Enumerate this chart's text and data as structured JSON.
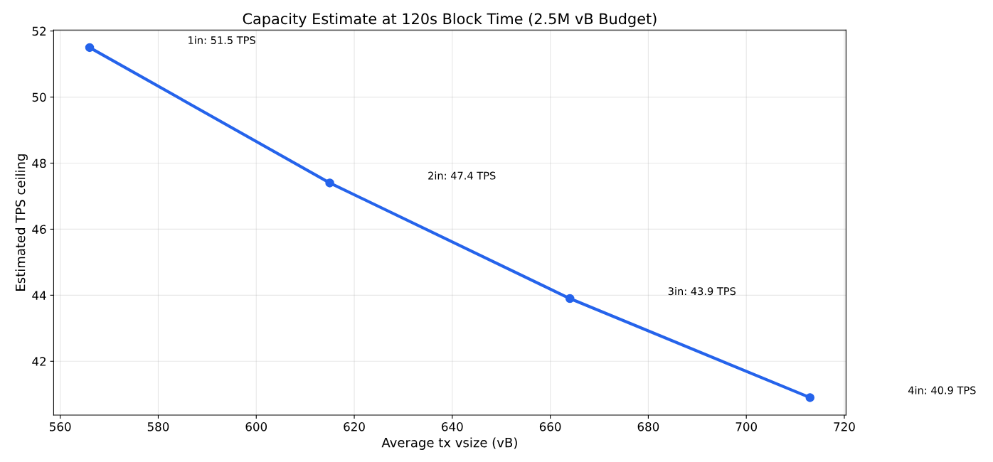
{
  "chart_data": {
    "type": "line",
    "title": "Capacity Estimate at 120s Block Time (2.5M vB Budget)",
    "xlabel": "Average tx vsize (vB)",
    "ylabel": "Estimated TPS ceiling",
    "x": [
      566,
      615,
      664,
      713
    ],
    "series": [
      {
        "color": "#2563eb",
        "values": [
          51.5,
          47.4,
          43.9,
          40.9
        ]
      }
    ],
    "marker": "circle",
    "line_style": "solid",
    "grid": true,
    "xlim": [
      558.65,
      720.35
    ],
    "xticks": [
      560,
      580,
      600,
      620,
      640,
      660,
      680,
      700,
      720
    ],
    "ylim": [
      40.37,
      52.03
    ],
    "yticks": [
      42,
      44,
      46,
      48,
      50,
      52
    ],
    "annotations": [
      "1in: 51.5 TPS",
      "2in: 47.4 TPS",
      "3in: 43.9 TPS",
      "4in: 40.9 TPS"
    ]
  }
}
